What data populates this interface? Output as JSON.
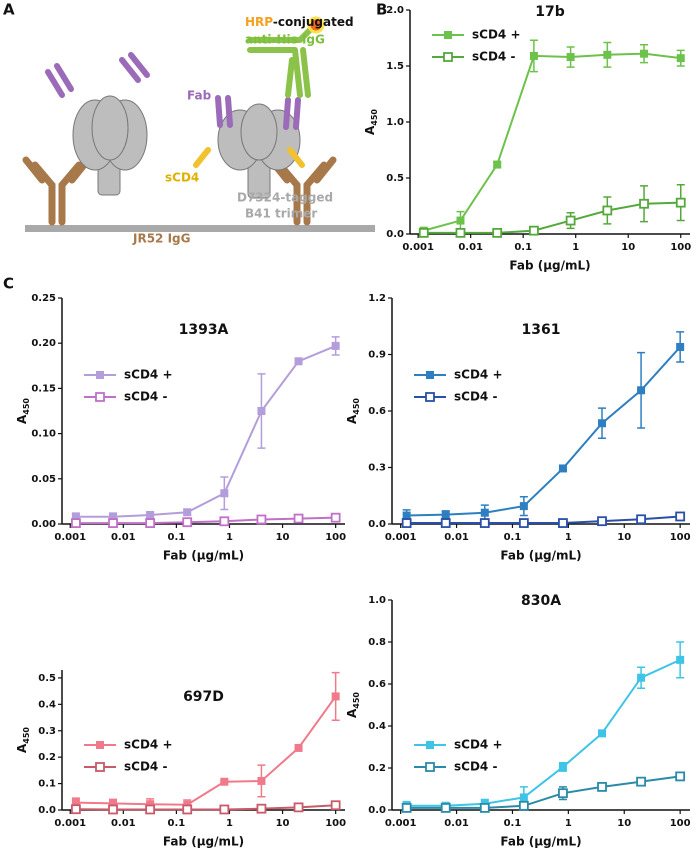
{
  "panels": [
    "A",
    "B",
    "C"
  ],
  "diagram": {
    "hrp": "HRP",
    "conjugated": "-conjugated",
    "antihis": "anti-His IgG",
    "fab": "Fab",
    "scd4": "sCD4",
    "tagged": "D7324-tagged",
    "trimer": "B41 trimer",
    "jr52": "JR52 IgG"
  },
  "chart_data": [
    {
      "type": "line",
      "title": "17b",
      "xlabel": "Fab (μg/mL)",
      "ylabel": "A",
      "ylabel_subscript": "450",
      "xscale": "log",
      "legend": "upper left",
      "x": [
        0.00128,
        0.0064,
        0.032,
        0.16,
        0.8,
        4,
        20,
        100
      ],
      "xlim": [
        0.0007,
        150
      ],
      "xticks": [
        0.001,
        0.01,
        0.1,
        1,
        10,
        100
      ],
      "ylim": [
        0,
        2.0
      ],
      "yticks": [
        {
          "value": 0,
          "label": "0.0"
        },
        0.5,
        {
          "value": 1,
          "label": "1.0"
        },
        1.5,
        {
          "value": 2,
          "label": "2.0"
        }
      ],
      "series": [
        {
          "name": "sCD4 +",
          "color": "#6cc24a",
          "marker": "filled",
          "values": [
            0.03,
            0.12,
            0.62,
            1.59,
            1.58,
            1.6,
            1.61,
            1.57
          ],
          "errors": [
            0.02,
            0.08,
            0.02,
            0.14,
            0.09,
            0.11,
            0.08,
            0.07
          ]
        },
        {
          "name": "sCD4 -",
          "color": "#55a83c",
          "marker": "open",
          "values": [
            0.01,
            0.01,
            0.01,
            0.03,
            0.12,
            0.21,
            0.27,
            0.28
          ],
          "errors": [
            0.01,
            0.01,
            0.01,
            0.02,
            0.07,
            0.12,
            0.16,
            0.16
          ]
        }
      ]
    },
    {
      "type": "line",
      "title": "1393A",
      "xlabel": "Fab (μg/mL)",
      "ylabel": "A",
      "ylabel_subscript": "450",
      "xscale": "log",
      "legend": "upper left",
      "x": [
        0.00128,
        0.0064,
        0.032,
        0.16,
        0.8,
        4,
        20,
        100
      ],
      "xlim": [
        0.0007,
        150
      ],
      "xticks": [
        0.001,
        0.01,
        0.1,
        1,
        10,
        100
      ],
      "ylim": [
        0,
        0.25
      ],
      "yticks": [
        {
          "value": 0,
          "label": "0.00"
        },
        0.05,
        {
          "value": 0.1,
          "label": "0.10"
        },
        0.15,
        {
          "value": 0.2,
          "label": "0.20"
        },
        0.25
      ],
      "series": [
        {
          "name": "sCD4 +",
          "color": "#b39ddb",
          "marker": "filled",
          "values": [
            0.008,
            0.008,
            0.01,
            0.013,
            0.034,
            0.125,
            0.18,
            0.197
          ],
          "errors": [
            0.004,
            0.004,
            0.003,
            0.003,
            0.018,
            0.041,
            0.002,
            0.01
          ]
        },
        {
          "name": "sCD4 -",
          "color": "#c070c8",
          "marker": "open",
          "values": [
            0.001,
            0.001,
            0.001,
            0.002,
            0.003,
            0.005,
            0.006,
            0.007
          ],
          "errors": [
            0.001,
            0.001,
            0.001,
            0.001,
            0.001,
            0.002,
            0.004,
            0.004
          ]
        }
      ]
    },
    {
      "type": "line",
      "title": "1361",
      "xlabel": "Fab (μg/mL)",
      "ylabel": "A",
      "ylabel_subscript": "450",
      "xscale": "log",
      "legend": "upper left",
      "x": [
        0.00128,
        0.0064,
        0.032,
        0.16,
        0.8,
        4,
        20,
        100
      ],
      "xlim": [
        0.0007,
        150
      ],
      "xticks": [
        0.001,
        0.01,
        0.1,
        1,
        10,
        100
      ],
      "ylim": [
        0,
        1.2
      ],
      "yticks": [
        {
          "value": 0,
          "label": "0.0"
        },
        0.3,
        0.6,
        0.9,
        1.2
      ],
      "series": [
        {
          "name": "sCD4 +",
          "color": "#2e7fc1",
          "marker": "filled",
          "values": [
            0.045,
            0.05,
            0.06,
            0.095,
            0.295,
            0.535,
            0.71,
            0.94
          ],
          "errors": [
            0.03,
            0.02,
            0.04,
            0.05,
            0.01,
            0.08,
            0.2,
            0.08
          ]
        },
        {
          "name": "sCD4 -",
          "color": "#2a4fa8",
          "marker": "open",
          "values": [
            0.005,
            0.005,
            0.005,
            0.005,
            0.005,
            0.015,
            0.025,
            0.04
          ],
          "errors": [
            0.004,
            0.004,
            0.004,
            0.004,
            0.004,
            0.005,
            0.005,
            0.005
          ]
        }
      ]
    },
    {
      "type": "line",
      "title": "697D",
      "xlabel": "Fab (μg/mL)",
      "ylabel": "A",
      "ylabel_subscript": "450",
      "xscale": "log",
      "legend": "upper left",
      "x": [
        0.00128,
        0.0064,
        0.032,
        0.16,
        0.8,
        4,
        20,
        100
      ],
      "xlim": [
        0.0007,
        150
      ],
      "xticks": [
        0.001,
        0.01,
        0.1,
        1,
        10,
        100
      ],
      "ylim": [
        0,
        0.53
      ],
      "yticks": [
        {
          "value": 0,
          "label": "0.0"
        },
        0.1,
        0.2,
        0.3,
        0.4,
        0.5
      ],
      "series": [
        {
          "name": "sCD4 +",
          "color": "#f07a8a",
          "marker": "filled",
          "values": [
            0.028,
            0.025,
            0.022,
            0.02,
            0.107,
            0.11,
            0.235,
            0.43
          ],
          "errors": [
            0.017,
            0.015,
            0.02,
            0.018,
            0.003,
            0.06,
            0.003,
            0.09
          ]
        },
        {
          "name": "sCD4 -",
          "color": "#c85a6a",
          "marker": "open",
          "values": [
            0.003,
            0.002,
            0.002,
            0.002,
            0.002,
            0.005,
            0.01,
            0.018
          ],
          "errors": [
            0.002,
            0.002,
            0.002,
            0.002,
            0.002,
            0.003,
            0.004,
            0.008
          ]
        }
      ]
    },
    {
      "type": "line",
      "title": "830A",
      "xlabel": "Fab (μg/mL)",
      "ylabel": "A",
      "ylabel_subscript": "450",
      "xscale": "log",
      "legend": "upper left",
      "x": [
        0.00128,
        0.0064,
        0.032,
        0.16,
        0.8,
        4,
        20,
        100
      ],
      "xlim": [
        0.0007,
        150
      ],
      "xticks": [
        0.001,
        0.01,
        0.1,
        1,
        10,
        100
      ],
      "ylim": [
        0,
        1.0
      ],
      "yticks": [
        {
          "value": 0,
          "label": "0.0"
        },
        0.2,
        0.4,
        0.6,
        0.8,
        {
          "value": 1,
          "label": "1.0"
        }
      ],
      "series": [
        {
          "name": "sCD4 +",
          "color": "#3ec4e6",
          "marker": "filled",
          "values": [
            0.02,
            0.02,
            0.03,
            0.06,
            0.205,
            0.365,
            0.63,
            0.715
          ],
          "errors": [
            0.02,
            0.015,
            0.02,
            0.05,
            0.02,
            0.01,
            0.05,
            0.085
          ]
        },
        {
          "name": "sCD4 -",
          "color": "#2a8aa8",
          "marker": "open",
          "values": [
            0.01,
            0.01,
            0.01,
            0.02,
            0.08,
            0.11,
            0.135,
            0.16
          ],
          "errors": [
            0.005,
            0.005,
            0.005,
            0.01,
            0.03,
            0.01,
            0.01,
            0.01
          ]
        }
      ]
    }
  ]
}
